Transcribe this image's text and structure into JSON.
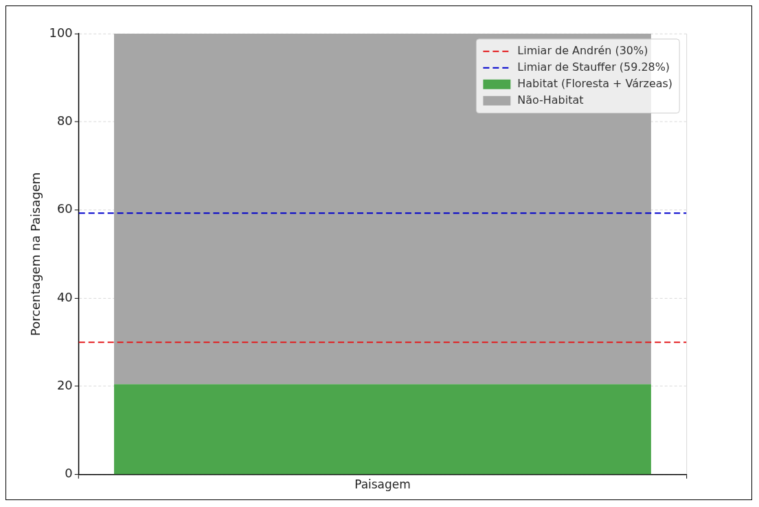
{
  "chart_data": {
    "type": "bar",
    "stacked": true,
    "ylabel": "Porcentagem na Paisagem",
    "categories": [
      "Paisagem"
    ],
    "series": [
      {
        "name": "Habitat (Floresta + Várzeas)",
        "color": "#4ca64c",
        "values": [
          20.5
        ]
      },
      {
        "name": "Não-Habitat",
        "color": "#a6a6a6",
        "values": [
          79.5
        ]
      }
    ],
    "ylim": [
      0,
      100
    ],
    "yticks": [
      0,
      20,
      40,
      60,
      80,
      100
    ],
    "grid": true,
    "legend": "top right",
    "ref_lines": [
      {
        "axis": "y",
        "value": 30,
        "label": "Limiar de Andrén (30%)",
        "color": "#e41a1c",
        "line_style": "dashed"
      },
      {
        "axis": "y",
        "value": 59.28,
        "label": "Limiar de Stauffer (59.28%)",
        "color": "#0000cc",
        "line_style": "dashed"
      }
    ]
  }
}
